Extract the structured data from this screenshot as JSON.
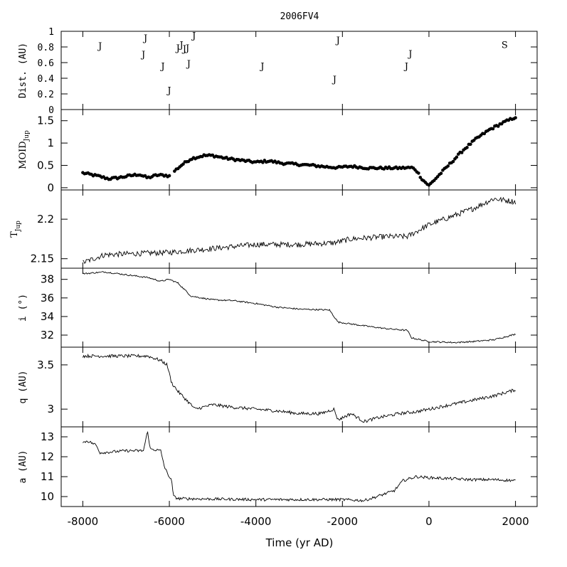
{
  "chart_data": {
    "title": "2006FV4",
    "xlabel": "Time (yr AD)",
    "xlim": [
      -8500,
      2500
    ],
    "x_ticks": [
      -8000,
      -6000,
      -4000,
      -2000,
      0,
      2000
    ],
    "x_tick_labels": [
      "-8000",
      "-6000",
      "-4000",
      "-2000",
      "0",
      "2000"
    ],
    "panels": [
      {
        "key": "dist",
        "type": "scatter",
        "ylabel": "Dist. (AU)",
        "ylim": [
          0,
          1
        ],
        "y_ticks": [
          0,
          0.2,
          0.4,
          0.6,
          0.8,
          1
        ],
        "y_tick_labels": [
          "0",
          "0.2",
          "0.4",
          "0.6",
          "0.8",
          "1"
        ],
        "points": [
          {
            "x": -7600,
            "y": 0.82,
            "label": "J"
          },
          {
            "x": -6550,
            "y": 0.92,
            "label": "J"
          },
          {
            "x": -6600,
            "y": 0.71,
            "label": "J"
          },
          {
            "x": -6150,
            "y": 0.56,
            "label": "J"
          },
          {
            "x": -6000,
            "y": 0.25,
            "label": "J"
          },
          {
            "x": -5800,
            "y": 0.79,
            "label": "J"
          },
          {
            "x": -5720,
            "y": 0.83,
            "label": "J"
          },
          {
            "x": -5650,
            "y": 0.78,
            "label": "J"
          },
          {
            "x": -5580,
            "y": 0.79,
            "label": "J"
          },
          {
            "x": -5550,
            "y": 0.59,
            "label": "J"
          },
          {
            "x": -5430,
            "y": 0.95,
            "label": "J"
          },
          {
            "x": -3850,
            "y": 0.56,
            "label": "J"
          },
          {
            "x": -2100,
            "y": 0.89,
            "label": "J"
          },
          {
            "x": -2180,
            "y": 0.39,
            "label": "J"
          },
          {
            "x": -520,
            "y": 0.56,
            "label": "J"
          },
          {
            "x": -430,
            "y": 0.72,
            "label": "J"
          },
          {
            "x": 1750,
            "y": 0.83,
            "label": "S"
          }
        ]
      },
      {
        "key": "moid",
        "type": "scatter",
        "ylabel": "MOID",
        "ylabel_sub": "Jup",
        "ylim": [
          -0.05,
          1.75
        ],
        "y_ticks": [
          0,
          0.5,
          1,
          1.5
        ],
        "y_tick_labels": [
          "0",
          "0.5",
          "1",
          "1.5"
        ],
        "anchors": [
          [
            -8000,
            0.33
          ],
          [
            -7600,
            0.25
          ],
          [
            -7400,
            0.2
          ],
          [
            -7200,
            0.22
          ],
          [
            -6900,
            0.27
          ],
          [
            -6700,
            0.3
          ],
          [
            -6500,
            0.22
          ],
          [
            -6300,
            0.28
          ],
          [
            -6100,
            0.28
          ],
          [
            -5950,
            0.25
          ],
          [
            -5900,
            0.36
          ],
          [
            -5700,
            0.52
          ],
          [
            -5500,
            0.65
          ],
          [
            -5200,
            0.72
          ],
          [
            -5000,
            0.72
          ],
          [
            -4700,
            0.66
          ],
          [
            -4400,
            0.62
          ],
          [
            -4000,
            0.57
          ],
          [
            -3700,
            0.6
          ],
          [
            -3400,
            0.55
          ],
          [
            -3000,
            0.52
          ],
          [
            -2700,
            0.5
          ],
          [
            -2400,
            0.47
          ],
          [
            -2100,
            0.45
          ],
          [
            -1800,
            0.48
          ],
          [
            -1400,
            0.44
          ],
          [
            -1000,
            0.44
          ],
          [
            -700,
            0.44
          ],
          [
            -400,
            0.45
          ],
          [
            -300,
            0.4
          ],
          [
            -150,
            0.18
          ],
          [
            0,
            0.05
          ],
          [
            200,
            0.25
          ],
          [
            500,
            0.55
          ],
          [
            800,
            0.85
          ],
          [
            1100,
            1.1
          ],
          [
            1400,
            1.3
          ],
          [
            1700,
            1.45
          ],
          [
            2000,
            1.58
          ]
        ]
      },
      {
        "key": "tjup",
        "type": "line",
        "ylabel": "T",
        "ylabel_sub": "Jup",
        "ylim": [
          2.138,
          2.237
        ],
        "y_ticks": [
          2.15,
          2.2
        ],
        "y_tick_labels": [
          "2.15",
          "2.2"
        ],
        "anchors": [
          [
            -8000,
            2.145
          ],
          [
            -7500,
            2.155
          ],
          [
            -6500,
            2.157
          ],
          [
            -6000,
            2.158
          ],
          [
            -5000,
            2.163
          ],
          [
            -4000,
            2.168
          ],
          [
            -3000,
            2.168
          ],
          [
            -2200,
            2.17
          ],
          [
            -1800,
            2.175
          ],
          [
            -1000,
            2.178
          ],
          [
            -500,
            2.178
          ],
          [
            0,
            2.193
          ],
          [
            500,
            2.203
          ],
          [
            1000,
            2.213
          ],
          [
            1500,
            2.226
          ],
          [
            2000,
            2.222
          ]
        ]
      },
      {
        "key": "incl",
        "type": "line",
        "ylabel": "i (°)",
        "ylim": [
          30.7,
          39.2
        ],
        "y_ticks": [
          32,
          34,
          36,
          38
        ],
        "y_tick_labels": [
          "32",
          "34",
          "36",
          "38"
        ],
        "anchors": [
          [
            -8000,
            38.6
          ],
          [
            -7500,
            38.8
          ],
          [
            -7000,
            38.5
          ],
          [
            -6500,
            38.2
          ],
          [
            -6200,
            37.8
          ],
          [
            -6000,
            38.0
          ],
          [
            -5800,
            37.6
          ],
          [
            -5500,
            36.2
          ],
          [
            -5000,
            35.8
          ],
          [
            -4500,
            35.7
          ],
          [
            -4000,
            35.4
          ],
          [
            -3500,
            35.0
          ],
          [
            -3000,
            34.8
          ],
          [
            -2300,
            34.7
          ],
          [
            -2100,
            33.4
          ],
          [
            -1500,
            33.0
          ],
          [
            -1000,
            32.7
          ],
          [
            -500,
            32.5
          ],
          [
            -400,
            31.7
          ],
          [
            0,
            31.3
          ],
          [
            600,
            31.2
          ],
          [
            1000,
            31.3
          ],
          [
            1500,
            31.5
          ],
          [
            2000,
            32.1
          ]
        ]
      },
      {
        "key": "q",
        "type": "line",
        "ylabel": "q (AU)",
        "ylim": [
          2.8,
          3.7
        ],
        "y_ticks": [
          3,
          3.5
        ],
        "y_tick_labels": [
          "3",
          "3.5"
        ],
        "anchors": [
          [
            -8000,
            3.6
          ],
          [
            -7000,
            3.6
          ],
          [
            -6500,
            3.6
          ],
          [
            -6200,
            3.55
          ],
          [
            -6050,
            3.5
          ],
          [
            -5950,
            3.3
          ],
          [
            -5800,
            3.2
          ],
          [
            -5600,
            3.1
          ],
          [
            -5400,
            3.0
          ],
          [
            -5000,
            3.05
          ],
          [
            -4500,
            3.02
          ],
          [
            -4000,
            3.0
          ],
          [
            -3500,
            2.98
          ],
          [
            -3000,
            2.95
          ],
          [
            -2500,
            2.95
          ],
          [
            -2200,
            3.0
          ],
          [
            -2100,
            2.88
          ],
          [
            -1800,
            2.95
          ],
          [
            -1500,
            2.86
          ],
          [
            -1200,
            2.9
          ],
          [
            -700,
            2.95
          ],
          [
            -300,
            2.97
          ],
          [
            0,
            3.0
          ],
          [
            500,
            3.05
          ],
          [
            1000,
            3.1
          ],
          [
            1500,
            3.15
          ],
          [
            2000,
            3.22
          ]
        ]
      },
      {
        "key": "a",
        "type": "line",
        "ylabel": "a (AU)",
        "ylim": [
          9.5,
          13.5
        ],
        "y_ticks": [
          10,
          11,
          12,
          13
        ],
        "y_tick_labels": [
          "10",
          "11",
          "12",
          "13"
        ],
        "anchors": [
          [
            -8000,
            12.7
          ],
          [
            -7900,
            12.8
          ],
          [
            -7700,
            12.6
          ],
          [
            -7600,
            12.2
          ],
          [
            -7000,
            12.3
          ],
          [
            -6600,
            12.3
          ],
          [
            -6500,
            13.3
          ],
          [
            -6450,
            12.4
          ],
          [
            -6200,
            12.3
          ],
          [
            -6100,
            11.4
          ],
          [
            -5950,
            10.8
          ],
          [
            -5900,
            10.0
          ],
          [
            -5800,
            9.9
          ],
          [
            -4000,
            9.85
          ],
          [
            -2000,
            9.85
          ],
          [
            -1500,
            9.8
          ],
          [
            -1200,
            10.0
          ],
          [
            -800,
            10.3
          ],
          [
            -600,
            10.8
          ],
          [
            -300,
            11.0
          ],
          [
            0,
            10.95
          ],
          [
            500,
            10.9
          ],
          [
            1000,
            10.85
          ],
          [
            1500,
            10.85
          ],
          [
            2000,
            10.8
          ]
        ]
      }
    ]
  }
}
